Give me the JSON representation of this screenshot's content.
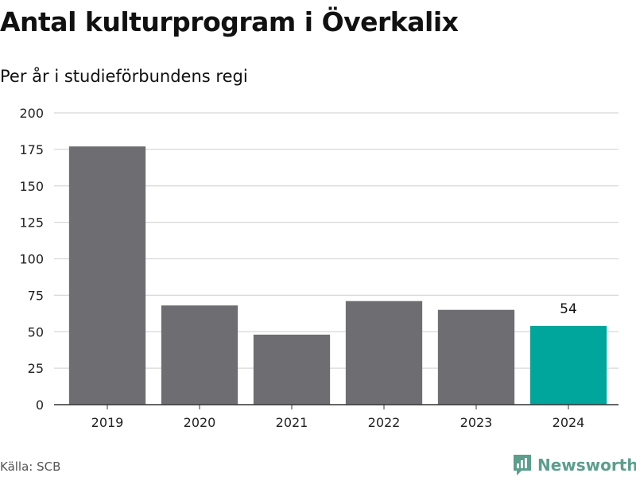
{
  "title": "Antal kulturprogram i Överkalix",
  "subtitle": "Per år i studieförbundens regi",
  "source": "Källa: SCB",
  "brand": {
    "name": "Newsworthy",
    "color": "#5b9e8c"
  },
  "colors": {
    "bar": "#6e6d72",
    "highlight": "#00a59b",
    "grid": "#d8d8d8",
    "axis": "#333333"
  },
  "chart_data": {
    "type": "bar",
    "categories": [
      "2019",
      "2020",
      "2021",
      "2022",
      "2023",
      "2024"
    ],
    "values": [
      177,
      68,
      48,
      71,
      65,
      54
    ],
    "highlight_index": 5,
    "data_labels": [
      null,
      null,
      null,
      null,
      null,
      "54"
    ],
    "yticks": [
      "0",
      "25",
      "50",
      "75",
      "100",
      "125",
      "150",
      "175",
      "200"
    ],
    "ylim": [
      0,
      200
    ],
    "grid": true
  }
}
